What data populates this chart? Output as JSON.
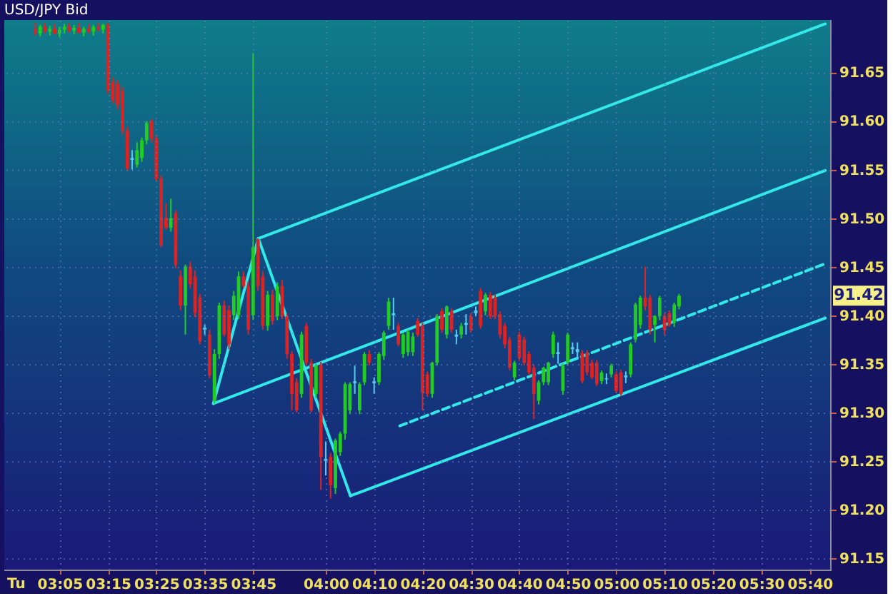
{
  "chart_data": {
    "type": "candlestick",
    "title": "USD/JPY Bid",
    "annotations": [
      "Tu",
      "91.42"
    ],
    "x": [
      3,
      3.0167,
      3.0333,
      3.05,
      3.0667,
      3.0833,
      3.1,
      3.1167,
      3.1333,
      3.15,
      3.1667,
      3.1833,
      3.2,
      3.2167,
      3.2333,
      3.25,
      3.2667,
      3.2833,
      3.3,
      3.3167,
      3.3333,
      3.35,
      3.3667,
      3.3833,
      3.4,
      3.4167,
      3.4333,
      3.45,
      3.4667,
      3.4833,
      3.5,
      3.5167,
      3.5333,
      3.55,
      3.5667,
      3.5833,
      3.6,
      3.6167,
      3.6333,
      3.65,
      3.6667,
      3.6833,
      3.7,
      3.7167,
      3.7333,
      3.75,
      3.7667,
      3.7833,
      3.8,
      3.8167,
      3.8333,
      3.85,
      3.8667,
      3.8833,
      3.9,
      3.9167,
      3.9333,
      3.95,
      3.9667,
      3.9833,
      4,
      4.0167,
      4.0333,
      4.05,
      4.0667,
      4.0833,
      4.1,
      4.1167,
      4.1333,
      4.15,
      4.1667,
      4.1833,
      4.2,
      4.2167,
      4.2333,
      4.25,
      4.2667,
      4.2833,
      4.3,
      4.3167,
      4.3333,
      4.35,
      4.3667,
      4.3833,
      4.4,
      4.4167,
      4.4333,
      4.45,
      4.4667,
      4.4833,
      4.5,
      4.5167,
      4.5333,
      4.55,
      4.5667,
      4.5833,
      4.6,
      4.6167,
      4.6333,
      4.65,
      4.6667,
      4.6833,
      4.7,
      4.7167,
      4.7333,
      4.75,
      4.7667,
      4.7833,
      4.8,
      4.8167,
      4.8333,
      4.85,
      4.8667,
      4.8833,
      4.9,
      4.9167,
      4.9333,
      4.95,
      4.9667,
      4.9833,
      5,
      5.0167,
      5.0333,
      5.05,
      5.0667,
      5.0833,
      5.1,
      5.1167,
      5.1333,
      5.15,
      5.1667,
      5.1833,
      5.2,
      5.2167
    ],
    "ohlc": [
      [
        91.695,
        91.701,
        91.688,
        91.69
      ],
      [
        91.69,
        91.699,
        91.687,
        91.697
      ],
      [
        91.697,
        91.701,
        91.69,
        91.692
      ],
      [
        91.692,
        91.698,
        91.688,
        91.695
      ],
      [
        91.695,
        91.7,
        91.689,
        91.69
      ],
      [
        91.69,
        91.697,
        91.686,
        91.694
      ],
      [
        91.694,
        91.7,
        91.69,
        91.697
      ],
      [
        91.697,
        91.701,
        91.691,
        91.693
      ],
      [
        91.693,
        91.699,
        91.689,
        91.696
      ],
      [
        91.696,
        91.701,
        91.69,
        91.691
      ],
      [
        91.691,
        91.697,
        91.687,
        91.695
      ],
      [
        91.695,
        91.7,
        91.69,
        91.692
      ],
      [
        91.692,
        91.699,
        91.688,
        91.697
      ],
      [
        91.697,
        91.701,
        91.692,
        91.694
      ],
      [
        91.694,
        91.7,
        91.69,
        91.699
      ],
      [
        91.699,
        91.701,
        91.628,
        91.631
      ],
      [
        91.64,
        91.645,
        91.618,
        91.621
      ],
      [
        91.638,
        91.642,
        91.612,
        91.617
      ],
      [
        91.631,
        91.635,
        91.586,
        91.59
      ],
      [
        91.59,
        91.594,
        91.548,
        91.551
      ],
      [
        91.56,
        91.57,
        91.55,
        91.562
      ],
      [
        91.555,
        91.578,
        91.552,
        91.57
      ],
      [
        91.562,
        91.583,
        91.558,
        91.58
      ],
      [
        91.58,
        91.6,
        91.576,
        91.598
      ],
      [
        91.6,
        91.602,
        91.578,
        91.582
      ],
      [
        91.582,
        91.585,
        91.538,
        91.54
      ],
      [
        91.541,
        91.544,
        91.47,
        91.472
      ],
      [
        91.5,
        91.515,
        91.488,
        91.49
      ],
      [
        91.49,
        91.52,
        91.486,
        91.5
      ],
      [
        91.505,
        91.508,
        91.448,
        91.452
      ],
      [
        91.44,
        91.446,
        91.405,
        91.41
      ],
      [
        91.41,
        91.452,
        91.38,
        91.45
      ],
      [
        91.45,
        91.455,
        91.428,
        91.432
      ],
      [
        91.44,
        91.446,
        91.398,
        91.402
      ],
      [
        91.418,
        91.422,
        91.37,
        91.373
      ],
      [
        91.385,
        91.39,
        91.38,
        91.387
      ],
      [
        91.38,
        91.385,
        91.335,
        91.338
      ],
      [
        91.312,
        91.365,
        91.309,
        91.36
      ],
      [
        91.36,
        91.413,
        91.355,
        91.41
      ],
      [
        91.41,
        91.415,
        91.378,
        91.38
      ],
      [
        91.405,
        91.41,
        91.365,
        91.37
      ],
      [
        91.4,
        91.425,
        91.395,
        91.42
      ],
      [
        91.4,
        91.445,
        91.396,
        91.44
      ],
      [
        91.44,
        91.445,
        91.428,
        91.43
      ],
      [
        91.43,
        91.435,
        91.38,
        91.385
      ],
      [
        91.4,
        91.67,
        91.395,
        91.47
      ],
      [
        91.478,
        91.479,
        91.425,
        91.43
      ],
      [
        91.44,
        91.445,
        91.385,
        91.389
      ],
      [
        91.389,
        91.425,
        91.384,
        91.421
      ],
      [
        91.421,
        91.426,
        91.39,
        91.394
      ],
      [
        91.399,
        91.434,
        91.395,
        91.43
      ],
      [
        91.43,
        91.436,
        91.396,
        91.399
      ],
      [
        91.399,
        91.402,
        91.355,
        91.36
      ],
      [
        91.36,
        91.363,
        91.302,
        91.319
      ],
      [
        91.331,
        91.335,
        91.3,
        91.302
      ],
      [
        91.319,
        91.383,
        91.315,
        91.38
      ],
      [
        91.389,
        91.392,
        91.348,
        91.351
      ],
      [
        91.351,
        91.355,
        91.3,
        91.302
      ],
      [
        91.319,
        91.35,
        91.315,
        91.348
      ],
      [
        91.348,
        91.352,
        91.22,
        91.254
      ],
      [
        91.25,
        91.27,
        91.235,
        91.252
      ],
      [
        91.254,
        91.258,
        91.211,
        91.225
      ],
      [
        91.222,
        91.273,
        91.216,
        91.271
      ],
      [
        91.259,
        91.28,
        91.255,
        91.278
      ],
      [
        91.278,
        91.331,
        91.272,
        91.329
      ],
      [
        91.302,
        91.331,
        91.298,
        91.329
      ],
      [
        91.33,
        91.348,
        91.319,
        91.332
      ],
      [
        91.302,
        91.331,
        91.298,
        91.329
      ],
      [
        91.331,
        91.362,
        91.328,
        91.36
      ],
      [
        91.36,
        91.364,
        91.348,
        91.351
      ],
      [
        91.33,
        91.336,
        91.319,
        91.332
      ],
      [
        91.331,
        91.362,
        91.328,
        91.36
      ],
      [
        91.358,
        91.384,
        91.354,
        91.382
      ],
      [
        91.389,
        91.418,
        91.385,
        91.414
      ],
      [
        91.4,
        91.418,
        91.385,
        91.402
      ],
      [
        91.389,
        91.392,
        91.368,
        91.37
      ],
      [
        91.36,
        91.382,
        91.356,
        91.38
      ],
      [
        91.362,
        91.385,
        91.358,
        91.383
      ],
      [
        91.362,
        91.382,
        91.358,
        91.378
      ],
      [
        91.394,
        91.397,
        91.378,
        91.38
      ],
      [
        91.389,
        91.392,
        91.302,
        91.32
      ],
      [
        91.339,
        91.342,
        91.316,
        91.319
      ],
      [
        91.319,
        91.352,
        91.315,
        91.351
      ],
      [
        91.351,
        91.401,
        91.348,
        91.399
      ],
      [
        91.404,
        91.407,
        91.382,
        91.385
      ],
      [
        91.38,
        91.41,
        91.376,
        91.409
      ],
      [
        91.404,
        91.407,
        91.382,
        91.385
      ],
      [
        91.38,
        91.385,
        91.37,
        91.378
      ],
      [
        91.38,
        91.392,
        91.376,
        91.389
      ],
      [
        91.39,
        91.401,
        91.38,
        91.392
      ],
      [
        91.399,
        91.402,
        91.382,
        91.385
      ],
      [
        91.402,
        91.409,
        91.399,
        91.405
      ],
      [
        91.425,
        91.428,
        91.386,
        91.389
      ],
      [
        91.404,
        91.423,
        91.4,
        91.421
      ],
      [
        91.421,
        91.424,
        91.396,
        91.399
      ],
      [
        91.418,
        91.421,
        91.396,
        91.399
      ],
      [
        91.401,
        91.404,
        91.376,
        91.38
      ],
      [
        91.389,
        91.392,
        91.366,
        91.37
      ],
      [
        91.375,
        91.378,
        91.343,
        91.346
      ],
      [
        91.336,
        91.353,
        91.333,
        91.351
      ],
      [
        91.38,
        91.383,
        91.353,
        91.356
      ],
      [
        91.375,
        91.378,
        91.348,
        91.351
      ],
      [
        91.36,
        91.363,
        91.338,
        91.341
      ],
      [
        91.346,
        91.349,
        91.293,
        91.319
      ],
      [
        91.312,
        91.333,
        91.308,
        91.331
      ],
      [
        91.331,
        91.347,
        91.328,
        91.346
      ],
      [
        91.331,
        91.352,
        91.328,
        91.351
      ],
      [
        91.36,
        91.383,
        91.356,
        91.38
      ],
      [
        91.362,
        91.372,
        91.35,
        91.36
      ],
      [
        91.322,
        91.35,
        91.318,
        91.348
      ],
      [
        91.351,
        91.382,
        91.348,
        91.38
      ],
      [
        91.365,
        91.372,
        91.36,
        91.367
      ],
      [
        91.362,
        91.372,
        91.355,
        91.365
      ],
      [
        91.361,
        91.364,
        91.33,
        91.332
      ],
      [
        91.361,
        91.364,
        91.338,
        91.341
      ],
      [
        91.351,
        91.354,
        91.334,
        91.336
      ],
      [
        91.351,
        91.354,
        91.327,
        91.329
      ],
      [
        91.332,
        91.343,
        91.329,
        91.341
      ],
      [
        91.335,
        91.34,
        91.329,
        91.334
      ],
      [
        91.339,
        91.35,
        91.336,
        91.348
      ],
      [
        91.339,
        91.342,
        91.32,
        91.322
      ],
      [
        91.341,
        91.344,
        91.317,
        91.319
      ],
      [
        91.336,
        91.342,
        91.33,
        91.338
      ],
      [
        91.339,
        91.372,
        91.336,
        91.37
      ],
      [
        91.375,
        91.413,
        91.372,
        91.411
      ],
      [
        91.39,
        91.42,
        91.386,
        91.418
      ],
      [
        91.418,
        91.45,
        91.405,
        91.409
      ],
      [
        91.418,
        91.421,
        91.38,
        91.385
      ],
      [
        91.39,
        91.4,
        91.372,
        91.399
      ],
      [
        91.399,
        91.42,
        91.395,
        91.418
      ],
      [
        91.399,
        91.402,
        91.38,
        91.385
      ],
      [
        91.402,
        91.405,
        91.388,
        91.39
      ],
      [
        91.392,
        91.413,
        91.388,
        91.411
      ],
      [
        91.409,
        91.422,
        91.406,
        91.42
      ]
    ],
    "colors": [
      "#dd2222",
      "#22cc22",
      "#dd2222",
      "#22cc22",
      "#dd2222",
      "#22cc22",
      "#22cc22",
      "#dd2222",
      "#22cc22",
      "#dd2222",
      "#22cc22",
      "#dd2222",
      "#22cc22",
      "#dd2222",
      "#22cc22",
      "#dd2222",
      "#dd2222",
      "#dd2222",
      "#dd2222",
      "#dd2222",
      "#55ccee",
      "#22cc22",
      "#22cc22",
      "#22cc22",
      "#dd2222",
      "#dd2222",
      "#dd2222",
      "#dd2222",
      "#22cc22",
      "#dd2222",
      "#dd2222",
      "#22cc22",
      "#dd2222",
      "#dd2222",
      "#dd2222",
      "#55ccee",
      "#dd2222",
      "#22cc22",
      "#22cc22",
      "#dd2222",
      "#dd2222",
      "#22cc22",
      "#22cc22",
      "#dd2222",
      "#dd2222",
      "#22cc22",
      "#dd2222",
      "#dd2222",
      "#22cc22",
      "#dd2222",
      "#22cc22",
      "#dd2222",
      "#dd2222",
      "#dd2222",
      "#dd2222",
      "#22cc22",
      "#dd2222",
      "#dd2222",
      "#22cc22",
      "#dd2222",
      "#55ccee",
      "#dd2222",
      "#22cc22",
      "#22cc22",
      "#22cc22",
      "#22cc22",
      "#55ccee",
      "#22cc22",
      "#22cc22",
      "#dd2222",
      "#55ccee",
      "#22cc22",
      "#22cc22",
      "#22cc22",
      "#55ccee",
      "#dd2222",
      "#22cc22",
      "#22cc22",
      "#22cc22",
      "#dd2222",
      "#dd2222",
      "#dd2222",
      "#22cc22",
      "#22cc22",
      "#dd2222",
      "#22cc22",
      "#dd2222",
      "#55ccee",
      "#22cc22",
      "#55ccee",
      "#dd2222",
      "#55ccee",
      "#dd2222",
      "#22cc22",
      "#dd2222",
      "#dd2222",
      "#dd2222",
      "#dd2222",
      "#dd2222",
      "#22cc22",
      "#dd2222",
      "#dd2222",
      "#dd2222",
      "#dd2222",
      "#22cc22",
      "#22cc22",
      "#22cc22",
      "#22cc22",
      "#55ccee",
      "#22cc22",
      "#22cc22",
      "#55ccee",
      "#55ccee",
      "#dd2222",
      "#dd2222",
      "#dd2222",
      "#dd2222",
      "#22cc22",
      "#55ccee",
      "#22cc22",
      "#dd2222",
      "#dd2222",
      "#55ccee",
      "#22cc22",
      "#22cc22",
      "#22cc22",
      "#dd2222",
      "#dd2222",
      "#22cc22",
      "#22cc22",
      "#dd2222",
      "#dd2222",
      "#22cc22",
      "#22cc22"
    ],
    "series": [
      {
        "type": "line",
        "color": "#33e8e8",
        "x": [
          3.613,
          3.768
        ],
        "values": [
          91.309,
          91.479
        ]
      },
      {
        "type": "line",
        "color": "#33e8e8",
        "x": [
          3.768,
          4.085
        ],
        "values": [
          91.479,
          91.214
        ]
      },
      {
        "type": "line",
        "color": "#33e8e8",
        "x": [
          3.768,
          5.72
        ],
        "values": [
          91.479,
          91.7
        ]
      },
      {
        "type": "line",
        "color": "#33e8e8",
        "x": [
          3.613,
          5.72
        ],
        "values": [
          91.309,
          91.549
        ]
      },
      {
        "type": "line",
        "color": "#33e8e8",
        "x": [
          4.085,
          5.72
        ],
        "values": [
          91.214,
          91.397
        ]
      },
      {
        "type": "line",
        "color": "#33e8e8",
        "line_style": "dashed",
        "x": [
          4.255,
          5.72
        ],
        "values": [
          91.286,
          91.453
        ]
      }
    ],
    "xlim": [
      2.893,
      5.737
    ],
    "xticks": [
      {
        "value": 3.0833,
        "label": "03:05"
      },
      {
        "value": 3.25,
        "label": "03:15"
      },
      {
        "value": 3.4167,
        "label": "03:25"
      },
      {
        "value": 3.5833,
        "label": "03:35"
      },
      {
        "value": 3.75,
        "label": "03:45"
      },
      {
        "value": 4,
        "label": "04:00"
      },
      {
        "value": 4.1667,
        "label": "04:10"
      },
      {
        "value": 4.3333,
        "label": "04:20"
      },
      {
        "value": 4.5,
        "label": "04:30"
      },
      {
        "value": 4.6667,
        "label": "04:40"
      },
      {
        "value": 4.8333,
        "label": "04:50"
      },
      {
        "value": 5,
        "label": "05:00"
      },
      {
        "value": 5.1667,
        "label": "05:10"
      },
      {
        "value": 5.3333,
        "label": "05:20"
      },
      {
        "value": 5.5,
        "label": "05:30"
      },
      {
        "value": 5.6667,
        "label": "05:40"
      }
    ],
    "ylim": [
      91.138,
      91.704
    ],
    "yticks": [
      91.15,
      {
        "value": 91.2,
        "label": "91.20"
      },
      91.25,
      {
        "value": 91.3,
        "label": "91.30"
      },
      91.35,
      {
        "value": 91.4,
        "label": "91.40"
      },
      91.45,
      {
        "value": 91.5,
        "label": "91.50"
      },
      91.55,
      {
        "value": 91.6,
        "label": "91.60"
      },
      91.65
    ],
    "grid": true
  }
}
